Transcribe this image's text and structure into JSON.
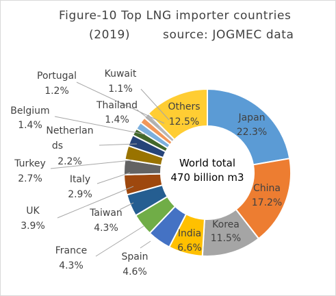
{
  "chart_data": {
    "type": "pie",
    "title_line1": "Figure-10  Top LNG importer countries",
    "title_line2_left": "(2019)",
    "title_line2_right": "source: JOGMEC data",
    "center_line1": "World total",
    "center_line2": "470 billion m3",
    "slices": [
      {
        "name": "Japan",
        "value": 22.3,
        "label": "22.3%",
        "color": "#5b9bd5"
      },
      {
        "name": "China",
        "value": 17.2,
        "label": "17.2%",
        "color": "#ed7d31"
      },
      {
        "name": "Korea",
        "value": 11.5,
        "label": "11.5%",
        "color": "#a5a5a5"
      },
      {
        "name": "India",
        "value": 6.6,
        "label": "6.6%",
        "color": "#ffc000"
      },
      {
        "name": "Spain",
        "value": 4.6,
        "label": "4.6%",
        "color": "#4472c4"
      },
      {
        "name": "France",
        "value": 4.3,
        "label": "4.3%",
        "color": "#70ad47"
      },
      {
        "name": "Taiwan",
        "value": 4.3,
        "label": "4.3%",
        "color": "#255e91"
      },
      {
        "name": "UK",
        "value": 3.9,
        "label": "3.9%",
        "color": "#9e480e"
      },
      {
        "name": "Italy",
        "value": 2.9,
        "label": "2.9%",
        "color": "#636363"
      },
      {
        "name": "Turkey",
        "value": 2.7,
        "label": "2.7%",
        "color": "#997300"
      },
      {
        "name": "Netherlands",
        "value": 2.2,
        "label": "2.2%",
        "color": "#264478"
      },
      {
        "name": "Belgium",
        "value": 1.4,
        "label": "1.4%",
        "color": "#43682b"
      },
      {
        "name": "Thailand",
        "value": 1.4,
        "label": "1.4%",
        "color": "#7cafdd"
      },
      {
        "name": "Portugal",
        "value": 1.2,
        "label": "1.2%",
        "color": "#f1975a"
      },
      {
        "name": "Kuwait",
        "value": 1.1,
        "label": "1.1%",
        "color": "#b7b7b7"
      },
      {
        "name": "Others",
        "value": 12.5,
        "label": "12.5%",
        "color": "#ffcd33"
      }
    ],
    "legend": "none"
  },
  "label_texts": {
    "netherlands_line1": "Netherlan",
    "netherlands_line2": "ds"
  }
}
